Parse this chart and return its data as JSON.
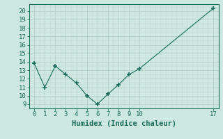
{
  "x": [
    0,
    1,
    2,
    3,
    4,
    5,
    6,
    7,
    8,
    9,
    10,
    17
  ],
  "y": [
    13.8,
    11.0,
    13.5,
    12.5,
    11.5,
    10.0,
    9.0,
    10.2,
    11.3,
    12.5,
    13.2,
    20.3
  ],
  "line_color": "#1a6b5a",
  "marker": "+",
  "marker_size": 4,
  "xlabel": "Humidex (Indice chaleur)",
  "xlim": [
    -0.5,
    17.5
  ],
  "ylim_min": 8.5,
  "ylim_max": 20.8,
  "yticks": [
    9,
    10,
    11,
    12,
    13,
    14,
    15,
    16,
    17,
    18,
    19,
    20
  ],
  "xticks": [
    0,
    1,
    2,
    3,
    4,
    5,
    6,
    7,
    8,
    9,
    10,
    17
  ],
  "bg_color": "#cce8e0",
  "grid_major_color": "#b8d4cc",
  "grid_minor_color": "#c4dcd4",
  "tick_label_size": 6.5,
  "xlabel_size": 7.5
}
